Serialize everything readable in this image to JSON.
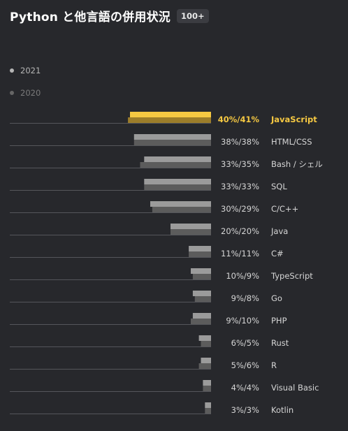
{
  "header": {
    "title": "Python と他言語の併用状況",
    "badge": "100+"
  },
  "colors": {
    "background": "#27282c",
    "y2021": "#9b9b9b",
    "y2020": "#5c5c5c",
    "highlight2021": "#f5c842",
    "highlight2020": "#9c7d2a",
    "highlightText": "#f5c842",
    "text": "#d6d6d6",
    "baseline": "#55565b"
  },
  "legend": [
    {
      "label": "2021",
      "color": "#b5b5b5"
    },
    {
      "label": "2020",
      "color": "#666666"
    }
  ],
  "chart_data": {
    "type": "bar",
    "orientation": "horizontal",
    "title": "Python と他言語の併用状況",
    "categories": [
      "JavaScript",
      "HTML/CSS",
      "Bash / シェル",
      "SQL",
      "C/C++",
      "Java",
      "C#",
      "TypeScript",
      "Go",
      "PHP",
      "Rust",
      "R",
      "Visual Basic",
      "Kotlin"
    ],
    "labels": [
      "40%/41%",
      "38%/38%",
      "33%/35%",
      "33%/33%",
      "30%/29%",
      "20%/20%",
      "11%/11%",
      "10%/9%",
      "9%/8%",
      "9%/10%",
      "6%/5%",
      "5%/6%",
      "4%/4%",
      "3%/3%"
    ],
    "series": [
      {
        "name": "2021",
        "values": [
          40,
          38,
          33,
          33,
          30,
          20,
          11,
          10,
          9,
          9,
          6,
          5,
          4,
          3
        ]
      },
      {
        "name": "2020",
        "values": [
          41,
          38,
          35,
          33,
          29,
          20,
          11,
          9,
          8,
          10,
          5,
          6,
          4,
          3
        ]
      }
    ],
    "highlight": "JavaScript",
    "xlim": [
      0,
      45
    ],
    "grid": false,
    "legend_position": "top-left"
  }
}
